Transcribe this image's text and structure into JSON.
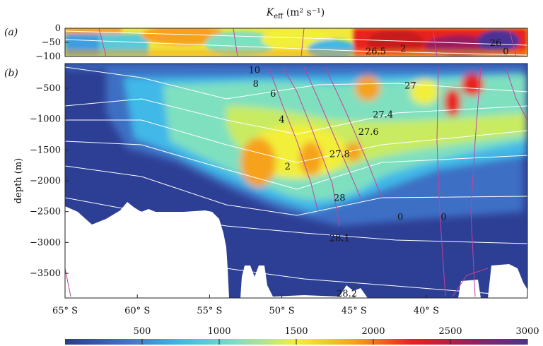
{
  "figure": {
    "title_main": "K",
    "title_sub": "eff",
    "title_units": " (m² s⁻¹)",
    "panel_a": "(a)",
    "panel_b": "(b)"
  },
  "chart_data": [
    {
      "panel": "(a)",
      "type": "heatmap",
      "ylabel": "",
      "yticks": [
        "0",
        "−50",
        "−100"
      ],
      "y_values": [
        0,
        -50,
        -100
      ],
      "ylim": [
        -100,
        0
      ],
      "xlim": [
        -65,
        -33
      ],
      "x_units": "latitude",
      "contours_density": [
        {
          "label": "26.5",
          "lat": -43.5,
          "depth": -80
        },
        {
          "label": "26",
          "lat": -35.2,
          "depth": -50
        }
      ],
      "contours_vorticity": [
        {
          "label": "2",
          "lat": -41.6,
          "depth": -70
        },
        {
          "label": "0",
          "lat": -34.5,
          "depth": -80
        }
      ]
    },
    {
      "panel": "(b)",
      "type": "heatmap",
      "ylabel": "depth (m)",
      "yticks": [
        "−500",
        "−1000",
        "−1500",
        "−2000",
        "−2500",
        "−3000",
        "−3500"
      ],
      "y_values": [
        -500,
        -1000,
        -1500,
        -2000,
        -2500,
        -3000,
        -3500
      ],
      "ylim": [
        -3900,
        -100
      ],
      "xticks": [
        "65° S",
        "60° S",
        "55° S",
        "50° S",
        "45° S",
        "40° S"
      ],
      "x_values": [
        -65,
        -60,
        -55,
        -50,
        -45,
        -40
      ],
      "xlim": [
        -65,
        -33
      ],
      "contours_density": [
        {
          "label": "27",
          "lat": -41.1,
          "depth": -450
        },
        {
          "label": "27.4",
          "lat": -43,
          "depth": -920
        },
        {
          "label": "27.6",
          "lat": -44,
          "depth": -1200
        },
        {
          "label": "27.8",
          "lat": -46,
          "depth": -1560
        },
        {
          "label": "28",
          "lat": -46,
          "depth": -2270
        },
        {
          "label": "28.1",
          "lat": -46,
          "depth": -2920
        },
        {
          "label": "28.2",
          "lat": -45.5,
          "depth": -3820
        }
      ],
      "contours_vorticity": [
        {
          "label": "10",
          "lat": -51.9,
          "depth": -200
        },
        {
          "label": "8",
          "lat": -51.8,
          "depth": -420
        },
        {
          "label": "6",
          "lat": -50.6,
          "depth": -580
        },
        {
          "label": "4",
          "lat": -50,
          "depth": -1000
        },
        {
          "label": "2",
          "lat": -49.6,
          "depth": -1760
        },
        {
          "label": "0",
          "lat": -41.8,
          "depth": -2580
        },
        {
          "label": "0",
          "lat": -38.8,
          "depth": -2580
        }
      ],
      "colorbar": {
        "ticks": [
          "500",
          "1000",
          "1500",
          "2000",
          "2500",
          "3000"
        ],
        "values": [
          500,
          1000,
          1500,
          2000,
          2500,
          3000
        ],
        "range": [
          0,
          3000
        ],
        "colormap": [
          "#2a3b8f",
          "#3e6fc4",
          "#40b8e8",
          "#7fe0c0",
          "#f2ef3a",
          "#f6a21c",
          "#e8221c",
          "#9a1f5c",
          "#4a3394"
        ]
      }
    }
  ],
  "colors": {
    "density_contour": "#ffffff",
    "vorticity_contour": "#c0449a",
    "topography": "#ffffff"
  }
}
